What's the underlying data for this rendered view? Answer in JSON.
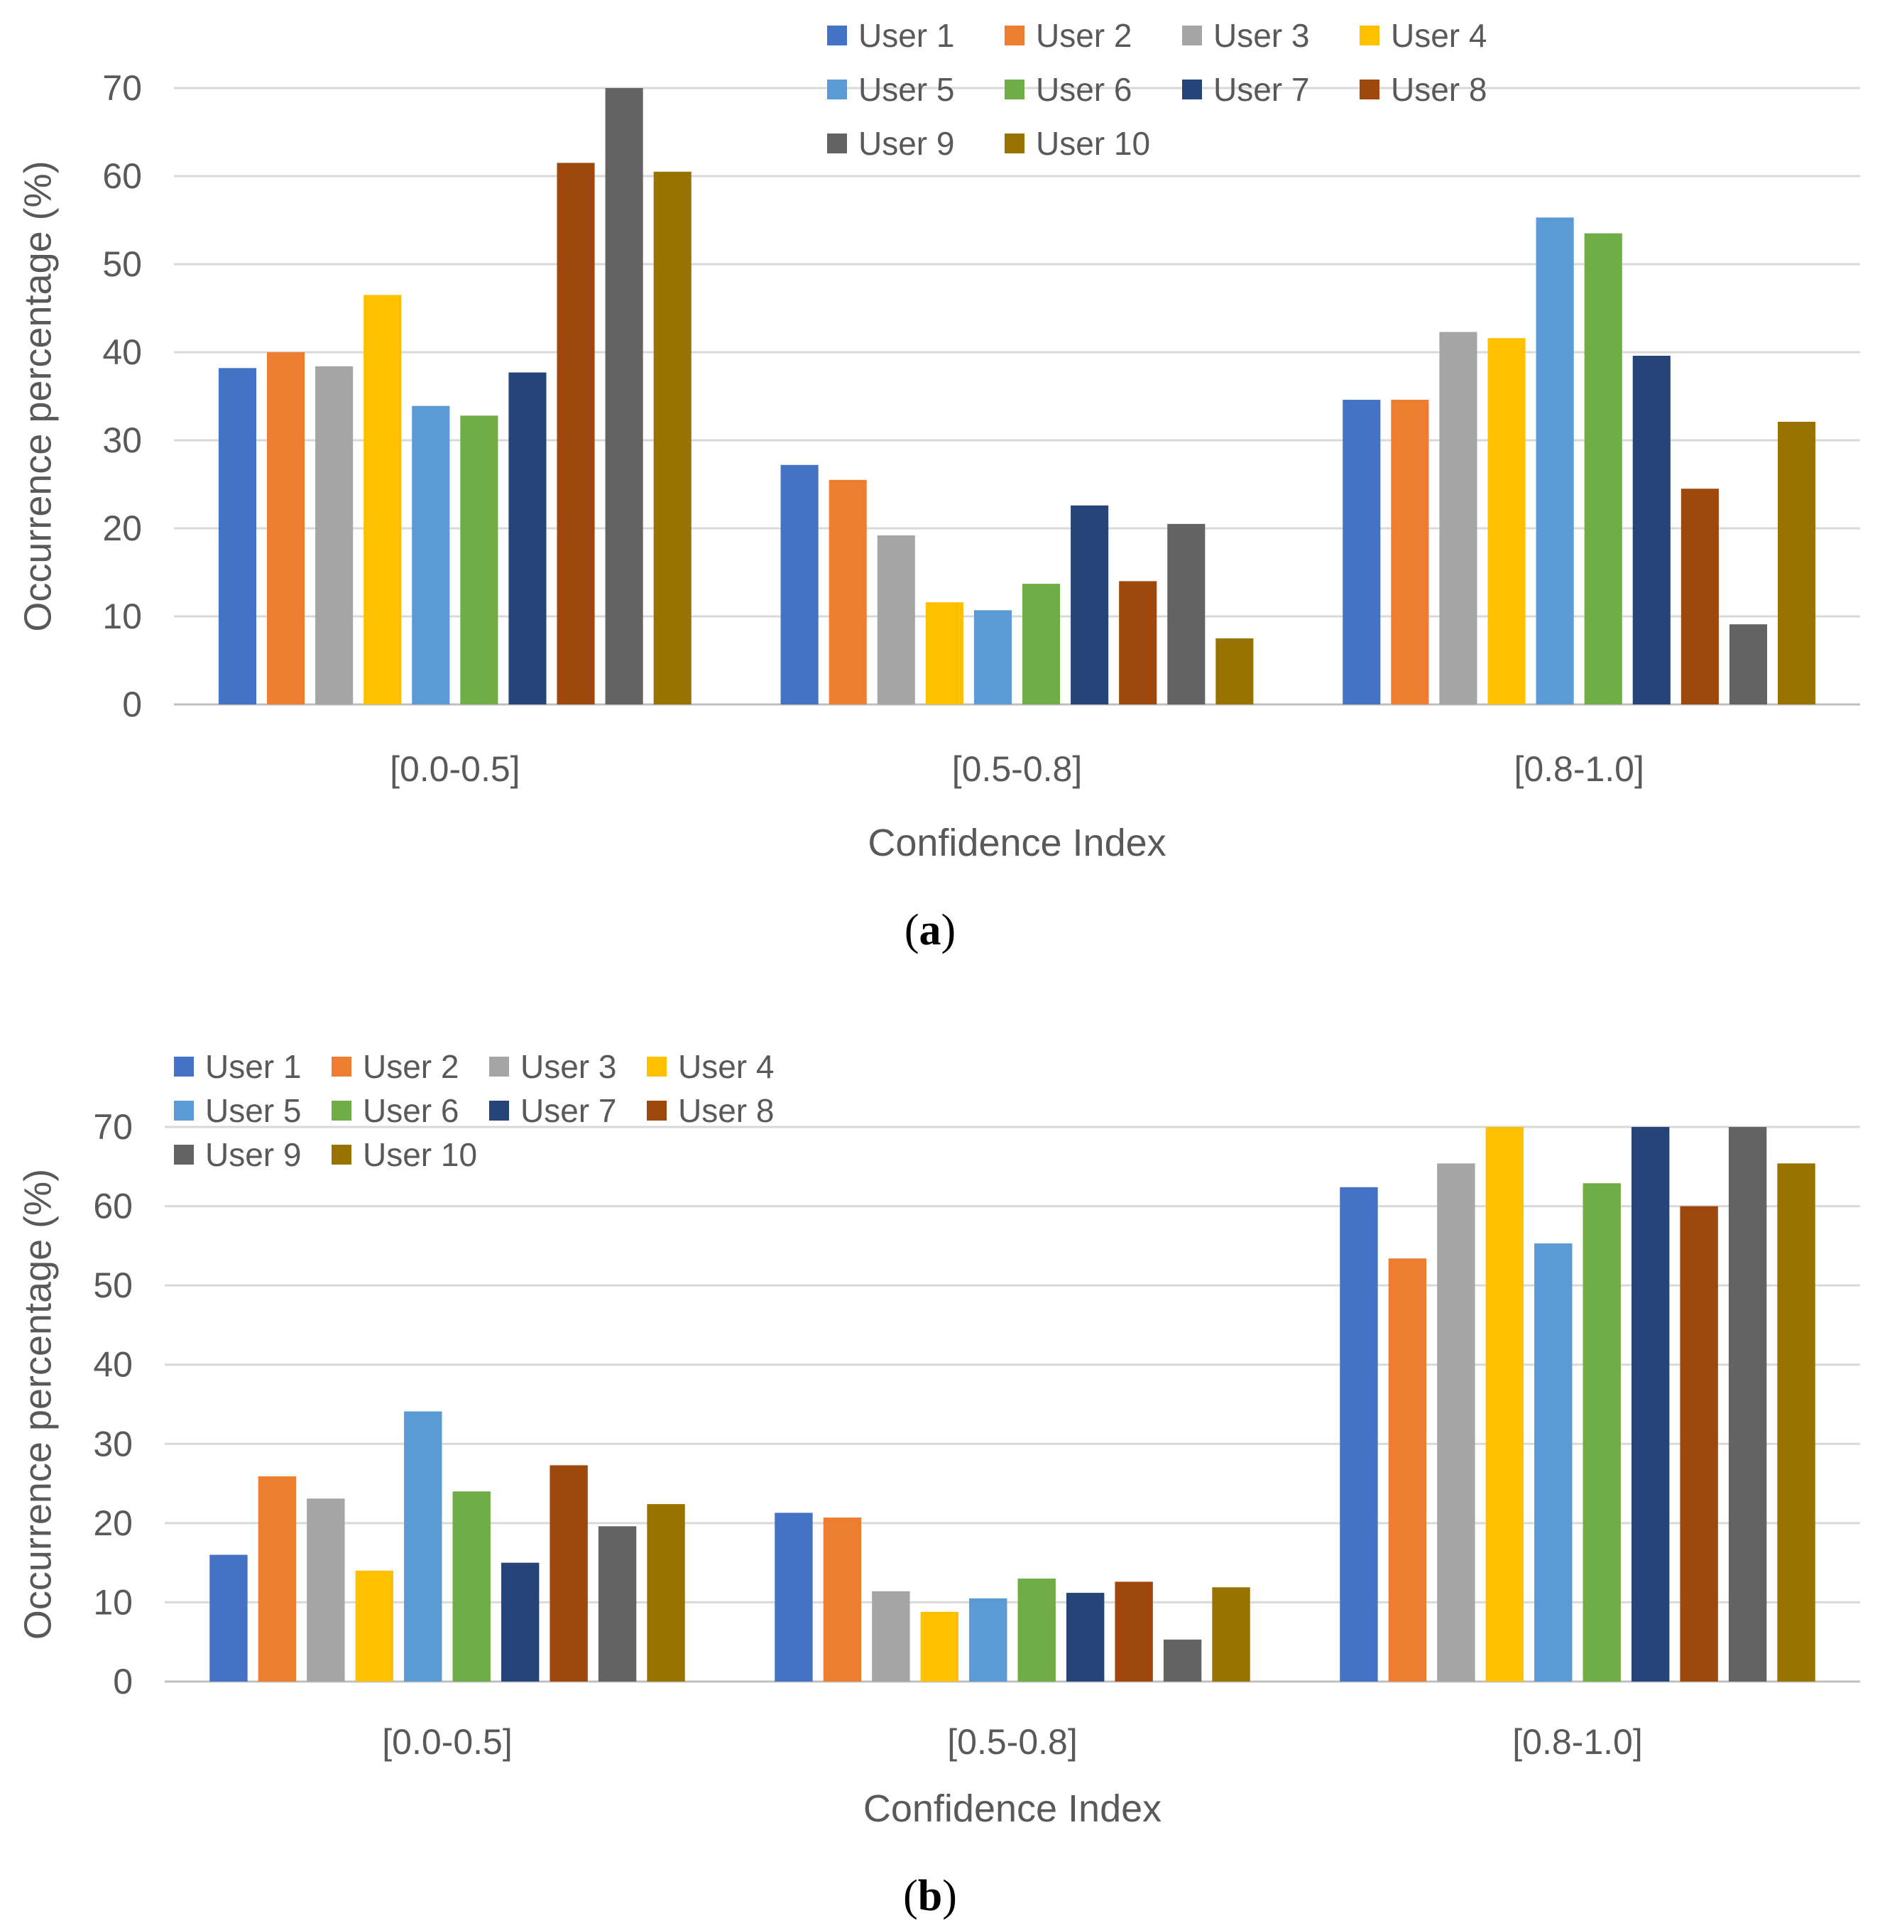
{
  "chart_data": [
    {
      "type": "bar",
      "panel": "a",
      "caption_letter": "a",
      "categories": [
        "[0.0-0.5]",
        "[0.5-0.8]",
        "[0.8-1.0]"
      ],
      "xlabel": "Confidence Index",
      "ylabel": "Occurrence percentage (%)",
      "ylim": [
        0,
        70
      ],
      "yticks": [
        "0",
        "10",
        "20",
        "30",
        "40",
        "50",
        "60",
        "70"
      ],
      "legend_position": "top-right",
      "grid": true,
      "series": [
        {
          "name": "User 1",
          "color": "#4472C4",
          "values": [
            38.2,
            27.2,
            34.6
          ]
        },
        {
          "name": "User 2",
          "color": "#ED7D31",
          "values": [
            40.0,
            25.5,
            34.6
          ]
        },
        {
          "name": "User 3",
          "color": "#A5A5A5",
          "values": [
            38.4,
            19.2,
            42.3
          ]
        },
        {
          "name": "User 4",
          "color": "#FFC000",
          "values": [
            46.5,
            11.6,
            41.6
          ]
        },
        {
          "name": "User 5",
          "color": "#5B9BD5",
          "values": [
            33.9,
            10.7,
            55.3
          ]
        },
        {
          "name": "User 6",
          "color": "#70AD47",
          "values": [
            32.8,
            13.7,
            53.5
          ]
        },
        {
          "name": "User 7",
          "color": "#264478",
          "values": [
            37.7,
            22.6,
            39.6
          ]
        },
        {
          "name": "User 8",
          "color": "#9E480E",
          "values": [
            61.5,
            14.0,
            24.5
          ]
        },
        {
          "name": "User 9",
          "color": "#636363",
          "values": [
            70.0,
            20.5,
            9.1
          ]
        },
        {
          "name": "User 10",
          "color": "#997300",
          "values": [
            60.5,
            7.5,
            32.1
          ]
        }
      ]
    },
    {
      "type": "bar",
      "panel": "b",
      "caption_letter": "b",
      "categories": [
        "[0.0-0.5]",
        "[0.5-0.8]",
        "[0.8-1.0]"
      ],
      "xlabel": "Confidence Index",
      "ylabel": "Occurrence percentage (%)",
      "ylim": [
        0,
        70
      ],
      "yticks": [
        "0",
        "10",
        "20",
        "30",
        "40",
        "50",
        "60",
        "70"
      ],
      "legend_position": "top-left",
      "grid": true,
      "series": [
        {
          "name": "User 1",
          "color": "#4472C4",
          "values": [
            16.0,
            21.3,
            62.4
          ]
        },
        {
          "name": "User 2",
          "color": "#ED7D31",
          "values": [
            25.9,
            20.7,
            53.4
          ]
        },
        {
          "name": "User 3",
          "color": "#A5A5A5",
          "values": [
            23.1,
            11.4,
            65.4
          ]
        },
        {
          "name": "User 4",
          "color": "#FFC000",
          "values": [
            14.0,
            8.8,
            70.0
          ]
        },
        {
          "name": "User 5",
          "color": "#5B9BD5",
          "values": [
            34.1,
            10.5,
            55.3
          ]
        },
        {
          "name": "User 6",
          "color": "#70AD47",
          "values": [
            24.0,
            13.0,
            62.9
          ]
        },
        {
          "name": "User 7",
          "color": "#264478",
          "values": [
            15.0,
            11.2,
            70.0
          ]
        },
        {
          "name": "User 8",
          "color": "#9E480E",
          "values": [
            27.3,
            12.6,
            60.0
          ]
        },
        {
          "name": "User 9",
          "color": "#636363",
          "values": [
            19.6,
            5.3,
            70.0
          ]
        },
        {
          "name": "User 10",
          "color": "#997300",
          "values": [
            22.4,
            11.9,
            65.4
          ]
        }
      ]
    }
  ]
}
